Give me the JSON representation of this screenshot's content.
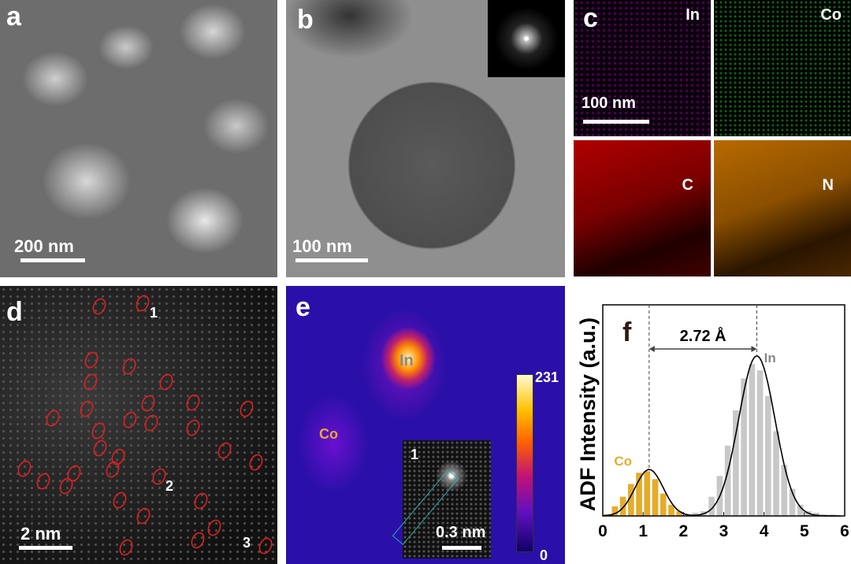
{
  "panels": {
    "a": {
      "label": "a",
      "scale_bar": "200 nm"
    },
    "b": {
      "label": "b",
      "scale_bar": "100 nm"
    },
    "c": {
      "label": "c",
      "scale_bar": "100 nm",
      "maps": [
        "In",
        "Co",
        "C",
        "N"
      ]
    },
    "d": {
      "label": "d",
      "markers": [
        "1",
        "2",
        "3"
      ],
      "scale_bar": "2 nm"
    },
    "e": {
      "label": "e",
      "in_label": "In",
      "co_label": "Co",
      "colorbar_max": "231",
      "colorbar_min": "0",
      "inset_marker": "1",
      "inset_scale_bar": "0.3 nm"
    },
    "f": {
      "label": "f"
    }
  },
  "colors": {
    "co": "#e5ac2a",
    "in": "#c8c8c8",
    "fit": "#000000"
  },
  "chart_data": {
    "type": "bar",
    "ylabel": "ADF Intensity (a.u.)",
    "xlabel": "",
    "xlim": [
      0,
      6
    ],
    "ylim": [
      0,
      1.32
    ],
    "xticks": [
      "0",
      "1",
      "2",
      "3",
      "4",
      "5",
      "6"
    ],
    "bin_width": 0.2,
    "series": [
      {
        "name": "Co",
        "x": [
          0.1,
          0.3,
          0.5,
          0.7,
          0.9,
          1.1,
          1.3,
          1.5,
          1.7,
          1.9
        ],
        "values": [
          0.01,
          0.06,
          0.12,
          0.2,
          0.27,
          0.28,
          0.23,
          0.14,
          0.07,
          0.03
        ]
      },
      {
        "name": "In",
        "x": [
          2.1,
          2.3,
          2.5,
          2.7,
          2.9,
          3.1,
          3.3,
          3.5,
          3.7,
          3.9,
          4.1,
          4.3,
          4.5,
          4.7,
          4.9,
          5.1,
          5.3,
          5.5,
          5.7
        ],
        "values": [
          0.01,
          0.02,
          0.03,
          0.12,
          0.25,
          0.44,
          0.66,
          0.86,
          0.95,
          0.91,
          0.75,
          0.53,
          0.32,
          0.17,
          0.07,
          0.03,
          0.02,
          0.01,
          0.01
        ]
      }
    ],
    "fit": [
      {
        "center": 1.15,
        "amplitude": 0.29,
        "sigma": 0.35
      },
      {
        "center": 3.82,
        "amplitude": 1.0,
        "sigma": 0.45
      }
    ],
    "annotations": {
      "distance": "2.72 Å",
      "peak_left": "Co",
      "peak_right": "In"
    }
  }
}
